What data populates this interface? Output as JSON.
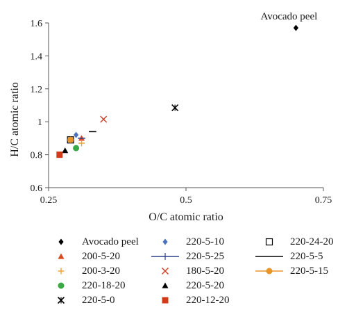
{
  "chart_data": {
    "type": "scatter",
    "title": "",
    "xlabel": "O/C atomic ratio",
    "ylabel": "H/C atomic ratio",
    "xlim": [
      0.25,
      0.75
    ],
    "ylim": [
      0.6,
      1.6
    ],
    "xticks": [
      "0.25",
      "0.5",
      "0.75"
    ],
    "yticks": [
      "0.6",
      "0.8",
      "1",
      "1.2",
      "1.4",
      "1.6"
    ],
    "grid": false,
    "legend_position": "bottom",
    "annotations": [
      {
        "text": "Avocado peel"
      }
    ],
    "series": [
      {
        "name": "Avocado peel",
        "marker": "diamond",
        "color": "#000000",
        "x": 0.7,
        "y": 1.57
      },
      {
        "name": "200-5-20",
        "marker": "triangle",
        "color": "#d9481e",
        "x": 0.31,
        "y": 0.9
      },
      {
        "name": "200-3-20",
        "marker": "plus",
        "color": "#f0a030",
        "x": 0.31,
        "y": 0.87
      },
      {
        "name": "220-18-20",
        "marker": "circle",
        "color": "#3aaa45",
        "x": 0.3,
        "y": 0.84
      },
      {
        "name": "220-5-0",
        "marker": "asterisk",
        "color": "#000000",
        "x": 0.48,
        "y": 1.085
      },
      {
        "name": "220-5-10",
        "marker": "diamond",
        "color": "#4a72c0",
        "x": 0.3,
        "y": 0.92
      },
      {
        "name": "220-5-25",
        "marker": "dash",
        "color": "#2d3e8c",
        "x": 0.31,
        "y": 0.9
      },
      {
        "name": "180-5-20",
        "marker": "x",
        "color": "#cc3a22",
        "x": 0.35,
        "y": 1.015
      },
      {
        "name": "220-5-20",
        "marker": "triangle",
        "color": "#000000",
        "x": 0.28,
        "y": 0.825
      },
      {
        "name": "220-12-20",
        "marker": "square",
        "color": "#d33a1a",
        "x": 0.27,
        "y": 0.8
      },
      {
        "name": "220-24-20",
        "marker": "square-open",
        "color": "#000000",
        "x": 0.29,
        "y": 0.89
      },
      {
        "name": "220-5-5",
        "marker": "dash",
        "color": "#000000",
        "x": 0.33,
        "y": 0.94
      },
      {
        "name": "220-5-15",
        "marker": "circle",
        "color": "#e8952a",
        "x": 0.29,
        "y": 0.89
      }
    ]
  }
}
